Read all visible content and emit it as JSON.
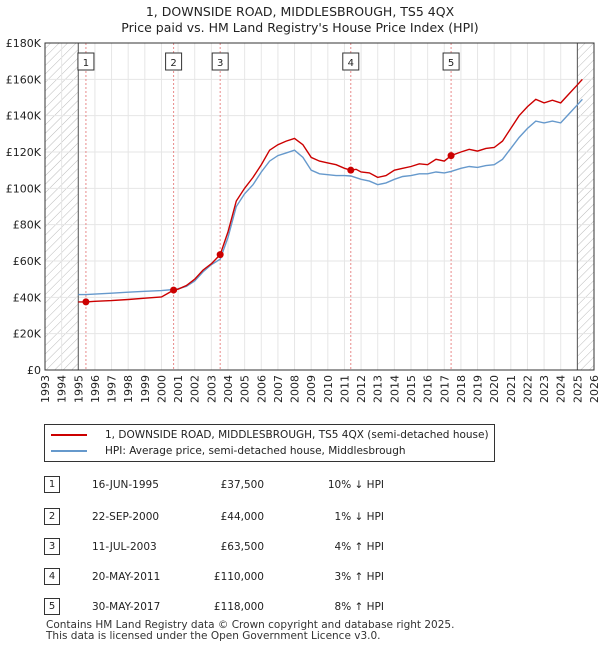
{
  "header": {
    "title": "1, DOWNSIDE ROAD, MIDDLESBROUGH, TS5 4QX",
    "subtitle": "Price paid vs. HM Land Registry's House Price Index (HPI)"
  },
  "legend": {
    "items": [
      {
        "label": "1, DOWNSIDE ROAD, MIDDLESBROUGH, TS5 4QX (semi-detached house)",
        "color": "#cc0000"
      },
      {
        "label": "HPI: Average price, semi-detached house, Middlesbrough",
        "color": "#6699cc"
      }
    ]
  },
  "sales": [
    {
      "num": "1",
      "date": "16-JUN-1995",
      "price": "£37,500",
      "hpi": "10% ↓ HPI"
    },
    {
      "num": "2",
      "date": "22-SEP-2000",
      "price": "£44,000",
      "hpi": "1% ↓ HPI"
    },
    {
      "num": "3",
      "date": "11-JUL-2003",
      "price": "£63,500",
      "hpi": "4% ↑ HPI"
    },
    {
      "num": "4",
      "date": "20-MAY-2011",
      "price": "£110,000",
      "hpi": "3% ↑ HPI"
    },
    {
      "num": "5",
      "date": "30-MAY-2017",
      "price": "£118,000",
      "hpi": "8% ↑ HPI"
    }
  ],
  "footer": {
    "line1": "Contains HM Land Registry data © Crown copyright and database right 2025.",
    "line2": "This data is licensed under the Open Government Licence v3.0."
  },
  "chart_data": {
    "type": "line",
    "xlim": [
      1993,
      2026
    ],
    "ylim": [
      0,
      180000
    ],
    "x_ticks": [
      "1993",
      "1994",
      "1995",
      "1996",
      "1997",
      "1998",
      "1999",
      "2000",
      "2001",
      "2002",
      "2003",
      "2004",
      "2005",
      "2006",
      "2007",
      "2008",
      "2009",
      "2010",
      "2011",
      "2012",
      "2013",
      "2014",
      "2015",
      "2016",
      "2017",
      "2018",
      "2019",
      "2020",
      "2021",
      "2022",
      "2023",
      "2024",
      "2025",
      "2026"
    ],
    "y_ticks": [
      {
        "value": 0,
        "label": "£0"
      },
      {
        "value": 20000,
        "label": "£20K"
      },
      {
        "value": 40000,
        "label": "£40K"
      },
      {
        "value": 60000,
        "label": "£60K"
      },
      {
        "value": 80000,
        "label": "£80K"
      },
      {
        "value": 100000,
        "label": "£100K"
      },
      {
        "value": 120000,
        "label": "£120K"
      },
      {
        "value": 140000,
        "label": "£140K"
      },
      {
        "value": 160000,
        "label": "£160K"
      },
      {
        "value": 180000,
        "label": "£180K"
      }
    ],
    "grid": true,
    "hatched_ranges": [
      [
        1993,
        1995.0
      ],
      [
        2025.0,
        2026
      ]
    ],
    "series": [
      {
        "color": "#cc0000",
        "points": [
          [
            1995.0,
            37500
          ],
          [
            1995.46,
            37500
          ],
          [
            1996.0,
            37800
          ],
          [
            1997.0,
            38200
          ],
          [
            1998.0,
            38800
          ],
          [
            1999.0,
            39500
          ],
          [
            2000.0,
            40200
          ],
          [
            2000.73,
            44000
          ],
          [
            2001.0,
            44500
          ],
          [
            2001.5,
            46500
          ],
          [
            2002.0,
            50000
          ],
          [
            2002.5,
            55000
          ],
          [
            2003.0,
            58500
          ],
          [
            2003.53,
            63500
          ],
          [
            2004.0,
            76000
          ],
          [
            2004.5,
            93000
          ],
          [
            2005.0,
            100000
          ],
          [
            2005.5,
            106000
          ],
          [
            2006.0,
            113000
          ],
          [
            2006.5,
            121000
          ],
          [
            2007.0,
            124000
          ],
          [
            2007.5,
            126000
          ],
          [
            2008.0,
            127500
          ],
          [
            2008.5,
            124000
          ],
          [
            2009.0,
            117000
          ],
          [
            2009.5,
            115000
          ],
          [
            2010.0,
            114000
          ],
          [
            2010.5,
            113000
          ],
          [
            2011.0,
            111000
          ],
          [
            2011.38,
            110000
          ],
          [
            2011.7,
            110500
          ],
          [
            2012.0,
            109000
          ],
          [
            2012.5,
            108500
          ],
          [
            2013.0,
            106000
          ],
          [
            2013.5,
            107000
          ],
          [
            2014.0,
            110000
          ],
          [
            2014.5,
            111000
          ],
          [
            2015.0,
            112000
          ],
          [
            2015.5,
            113500
          ],
          [
            2016.0,
            113000
          ],
          [
            2016.5,
            116000
          ],
          [
            2017.0,
            115000
          ],
          [
            2017.41,
            118000
          ],
          [
            2018.0,
            120000
          ],
          [
            2018.5,
            121500
          ],
          [
            2019.0,
            120500
          ],
          [
            2019.5,
            122000
          ],
          [
            2020.0,
            122500
          ],
          [
            2020.5,
            126000
          ],
          [
            2021.0,
            133000
          ],
          [
            2021.5,
            140000
          ],
          [
            2022.0,
            145000
          ],
          [
            2022.5,
            149000
          ],
          [
            2023.0,
            147000
          ],
          [
            2023.5,
            148500
          ],
          [
            2024.0,
            147000
          ],
          [
            2024.5,
            152000
          ],
          [
            2025.0,
            157000
          ],
          [
            2025.3,
            160000
          ]
        ]
      },
      {
        "color": "#6699cc",
        "points": [
          [
            1995.0,
            41500
          ],
          [
            1995.46,
            41500
          ],
          [
            1996.0,
            41800
          ],
          [
            1997.0,
            42300
          ],
          [
            1998.0,
            42800
          ],
          [
            1999.0,
            43300
          ],
          [
            2000.0,
            43700
          ],
          [
            2000.73,
            44300
          ],
          [
            2001.0,
            44700
          ],
          [
            2001.5,
            46000
          ],
          [
            2002.0,
            49000
          ],
          [
            2002.5,
            54000
          ],
          [
            2003.0,
            58000
          ],
          [
            2003.53,
            61000
          ],
          [
            2004.0,
            73000
          ],
          [
            2004.5,
            90000
          ],
          [
            2005.0,
            97000
          ],
          [
            2005.5,
            102000
          ],
          [
            2006.0,
            109000
          ],
          [
            2006.5,
            115000
          ],
          [
            2007.0,
            118000
          ],
          [
            2007.5,
            119500
          ],
          [
            2008.0,
            121000
          ],
          [
            2008.5,
            117000
          ],
          [
            2009.0,
            110000
          ],
          [
            2009.5,
            108000
          ],
          [
            2010.0,
            107500
          ],
          [
            2010.5,
            107000
          ],
          [
            2011.0,
            107000
          ],
          [
            2011.38,
            106800
          ],
          [
            2012.0,
            105000
          ],
          [
            2012.5,
            104000
          ],
          [
            2013.0,
            102000
          ],
          [
            2013.5,
            103000
          ],
          [
            2014.0,
            105000
          ],
          [
            2014.5,
            106500
          ],
          [
            2015.0,
            107000
          ],
          [
            2015.5,
            108000
          ],
          [
            2016.0,
            108000
          ],
          [
            2016.5,
            109000
          ],
          [
            2017.0,
            108500
          ],
          [
            2017.41,
            109300
          ],
          [
            2018.0,
            111000
          ],
          [
            2018.5,
            112000
          ],
          [
            2019.0,
            111500
          ],
          [
            2019.5,
            112500
          ],
          [
            2020.0,
            113000
          ],
          [
            2020.5,
            116000
          ],
          [
            2021.0,
            122000
          ],
          [
            2021.5,
            128000
          ],
          [
            2022.0,
            133000
          ],
          [
            2022.5,
            137000
          ],
          [
            2023.0,
            136000
          ],
          [
            2023.5,
            137000
          ],
          [
            2024.0,
            136000
          ],
          [
            2024.5,
            141000
          ],
          [
            2025.0,
            146000
          ],
          [
            2025.3,
            149000
          ]
        ]
      }
    ],
    "sale_points": [
      {
        "label": "1",
        "x": 1995.46,
        "y": 37500
      },
      {
        "label": "2",
        "x": 2000.73,
        "y": 44000
      },
      {
        "label": "3",
        "x": 2003.53,
        "y": 63500
      },
      {
        "label": "4",
        "x": 2011.38,
        "y": 110000
      },
      {
        "label": "5",
        "x": 2017.41,
        "y": 118000
      }
    ]
  }
}
